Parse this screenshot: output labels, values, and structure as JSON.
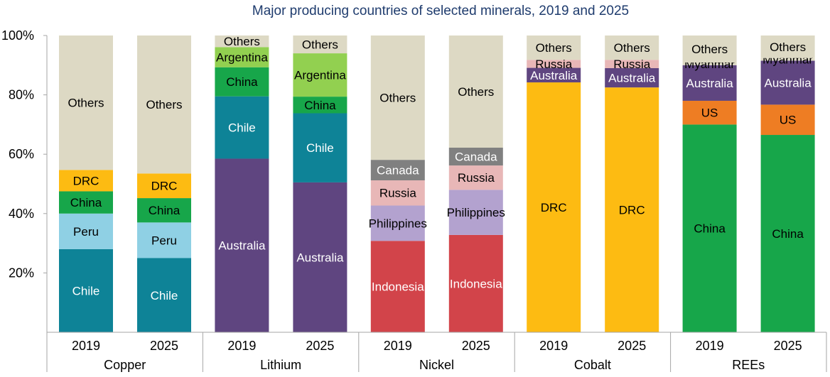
{
  "chart_data": {
    "type": "bar",
    "stacked": true,
    "percent": true,
    "title": "Major producing countries of selected minerals, 2019 and 2025",
    "ylim": [
      0,
      100
    ],
    "yticks": [
      "20%",
      "40%",
      "60%",
      "80%",
      "100%"
    ],
    "ytick_values": [
      20,
      40,
      60,
      80,
      100
    ],
    "grid": false,
    "legend": "none",
    "colors": {
      "Chile": "#0e8397",
      "Peru": "#8fd0e4",
      "China": "#17a64a",
      "DRC": "#fdbb12",
      "Others": "#ddd9c4",
      "Australia": "#5f4580",
      "Argentina": "#92d050",
      "Indonesia": "#d2444a",
      "Philippines": "#b3a2cf",
      "Russia": "#e8b7b7",
      "Canada": "#808080",
      "US": "#ee7d23",
      "Myanmar": "#ddd9c4"
    },
    "label_colors": {
      "Chile": "#ffffff",
      "Australia": "#ffffff",
      "Indonesia": "#ffffff",
      "Canada": "#ffffff"
    },
    "groups": [
      {
        "name": "Copper",
        "bars": [
          {
            "year": "2019",
            "segments": [
              {
                "label": "Chile",
                "value": 28
              },
              {
                "label": "Peru",
                "value": 12
              },
              {
                "label": "China",
                "value": 7.5
              },
              {
                "label": "DRC",
                "value": 7.2
              },
              {
                "label": "Others",
                "value": 45.3
              }
            ]
          },
          {
            "year": "2025",
            "segments": [
              {
                "label": "Chile",
                "value": 25
              },
              {
                "label": "Peru",
                "value": 12
              },
              {
                "label": "China",
                "value": 8.2
              },
              {
                "label": "DRC",
                "value": 8.3
              },
              {
                "label": "Others",
                "value": 46.5
              }
            ]
          }
        ]
      },
      {
        "name": "Lithium",
        "bars": [
          {
            "year": "2019",
            "segments": [
              {
                "label": "Australia",
                "value": 58.5
              },
              {
                "label": "Chile",
                "value": 21
              },
              {
                "label": "China",
                "value": 9.8
              },
              {
                "label": "Argentina",
                "value": 6.8
              },
              {
                "label": "Others",
                "value": 3.9
              }
            ]
          },
          {
            "year": "2025",
            "segments": [
              {
                "label": "Australia",
                "value": 50.5
              },
              {
                "label": "Chile",
                "value": 23.3
              },
              {
                "label": "China",
                "value": 5.6
              },
              {
                "label": "Argentina",
                "value": 14.6
              },
              {
                "label": "Others",
                "value": 6.0
              }
            ]
          }
        ]
      },
      {
        "name": "Nickel",
        "bars": [
          {
            "year": "2019",
            "segments": [
              {
                "label": "Indonesia",
                "value": 30.8
              },
              {
                "label": "Philippines",
                "value": 11.9
              },
              {
                "label": "Russia",
                "value": 8.5
              },
              {
                "label": "Canada",
                "value": 6.9
              },
              {
                "label": "Others",
                "value": 41.9
              }
            ]
          },
          {
            "year": "2025",
            "segments": [
              {
                "label": "Indonesia",
                "value": 32.8
              },
              {
                "label": "Philippines",
                "value": 15.2
              },
              {
                "label": "Russia",
                "value": 8.2
              },
              {
                "label": "Canada",
                "value": 6.0
              },
              {
                "label": "Others",
                "value": 37.8
              }
            ]
          }
        ]
      },
      {
        "name": "Cobalt",
        "bars": [
          {
            "year": "2019",
            "segments": [
              {
                "label": "DRC",
                "value": 84.2
              },
              {
                "label": "Australia",
                "value": 4.9
              },
              {
                "label": "Russia",
                "value": 2.7
              },
              {
                "label": "Others",
                "value": 8.2
              }
            ]
          },
          {
            "year": "2025",
            "segments": [
              {
                "label": "DRC",
                "value": 82.5
              },
              {
                "label": "Australia",
                "value": 6.5
              },
              {
                "label": "Russia",
                "value": 2.8
              },
              {
                "label": "Others",
                "value": 8.2
              }
            ]
          }
        ]
      },
      {
        "name": "REEs",
        "bars": [
          {
            "year": "2019",
            "segments": [
              {
                "label": "China",
                "value": 70
              },
              {
                "label": "US",
                "value": 8
              },
              {
                "label": "Australia",
                "value": 12
              },
              {
                "label": "Myanmar",
                "value": 0.9
              },
              {
                "label": "Others",
                "value": 9.1
              }
            ]
          },
          {
            "year": "2025",
            "segments": [
              {
                "label": "China",
                "value": 66.5
              },
              {
                "label": "US",
                "value": 10.2
              },
              {
                "label": "Australia",
                "value": 14.8
              },
              {
                "label": "Myanmar",
                "value": 0.9
              },
              {
                "label": "Others",
                "value": 7.6
              }
            ]
          }
        ]
      }
    ]
  }
}
